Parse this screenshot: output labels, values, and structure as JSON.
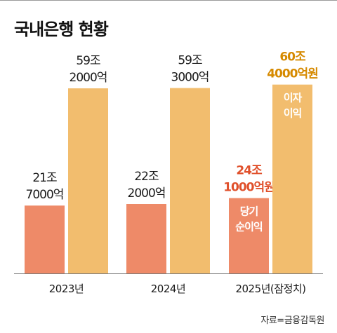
{
  "title": "국내은행 현황",
  "source": "자료=금융감독원",
  "colors": {
    "net_income": "#ee8a68",
    "interest": "#f2bd6e",
    "highlight_income": "#e0502b",
    "highlight_interest": "#d68a00",
    "text": "#1a1a1a",
    "axis": "#777777"
  },
  "chart_data": {
    "type": "bar",
    "categories": [
      "2023년",
      "2024년",
      "2025년(잠정치)"
    ],
    "ylim": [
      0,
      65
    ],
    "series": [
      {
        "name": "당기 순이익",
        "values": [
          21.7,
          22.2,
          24.1
        ],
        "value_labels": [
          [
            "21조",
            "7000억"
          ],
          [
            "22조",
            "2000억"
          ],
          [
            "24조",
            "1000억원"
          ]
        ],
        "inner_label": [
          "당기",
          "순이익"
        ]
      },
      {
        "name": "이자 이익",
        "values": [
          59.2,
          59.3,
          60.4
        ],
        "value_labels": [
          [
            "59조",
            "2000억"
          ],
          [
            "59조",
            "3000억"
          ],
          [
            "60조",
            "4000억원"
          ]
        ],
        "inner_label": [
          "이자",
          "이익"
        ]
      }
    ],
    "highlight_category_index": 2
  }
}
